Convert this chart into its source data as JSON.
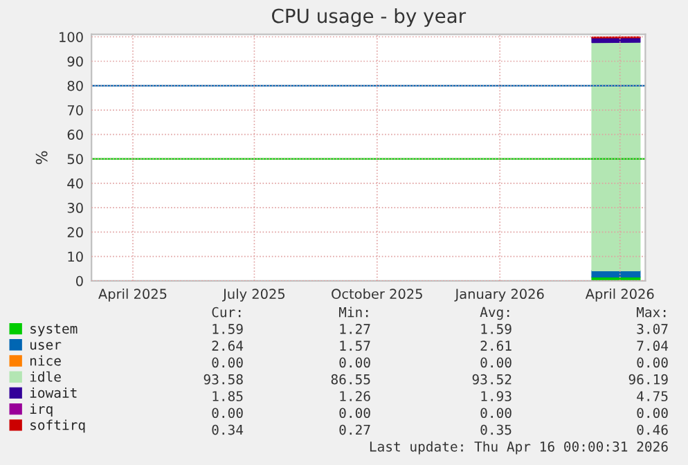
{
  "chart_data": {
    "type": "area",
    "stacked": true,
    "title": "CPU usage - by year",
    "ylabel": "%",
    "x": [
      "2026-03-11",
      "2026-04-16"
    ],
    "series": [
      {
        "name": "system",
        "color": "#00cc00",
        "values": [
          1.6,
          1.6
        ]
      },
      {
        "name": "user",
        "color": "#0066b3",
        "values": [
          2.6,
          2.6
        ]
      },
      {
        "name": "nice",
        "color": "#ff8000",
        "values": [
          null,
          null
        ]
      },
      {
        "name": "idle",
        "color": "#b3e6b3",
        "values": [
          93.5,
          93.6
        ]
      },
      {
        "name": "iowait",
        "color": "#330099",
        "values": [
          1.9,
          1.9
        ]
      },
      {
        "name": "irq",
        "color": "#990099",
        "values": [
          null,
          null
        ]
      },
      {
        "name": "softirq",
        "color": "#cc0000",
        "values": [
          0.3,
          0.3
        ]
      }
    ],
    "xlim": [
      "2025-03-01",
      "2026-04-20"
    ],
    "xticks": [
      {
        "value": "2025-04-01",
        "label": "April 2025"
      },
      {
        "value": "2025-07-01",
        "label": "July 2025"
      },
      {
        "value": "2025-10-01",
        "label": "October 2025"
      },
      {
        "value": "2026-01-01",
        "label": "January 2026"
      },
      {
        "value": "2026-04-01",
        "label": "April 2026"
      }
    ],
    "ylim": [
      0,
      101
    ],
    "yticks": [
      0,
      10,
      20,
      30,
      40,
      50,
      60,
      70,
      80,
      90,
      100
    ],
    "ref_lines": [
      {
        "axis": "y",
        "value": 80,
        "color": "#0066b3"
      },
      {
        "axis": "y",
        "value": 50,
        "color": "#00cc00"
      }
    ],
    "grid": true,
    "legend": "bottom left",
    "annotations": [
      "Cur:",
      "Min:",
      "Avg:",
      "Max:",
      "1.59",
      "1.27",
      "1.59",
      "3.07",
      "2.64",
      "1.57",
      "2.61",
      "7.04",
      "0.00",
      "0.00",
      "0.00",
      "0.00",
      "93.58",
      "86.55",
      "93.52",
      "96.19",
      "1.85",
      "1.26",
      "1.93",
      "4.75",
      "0.00",
      "0.00",
      "0.00",
      "0.00",
      "0.34",
      "0.27",
      "0.35",
      "0.46",
      "Last update: Thu Apr 16 00:00:31 2026"
    ]
  }
}
